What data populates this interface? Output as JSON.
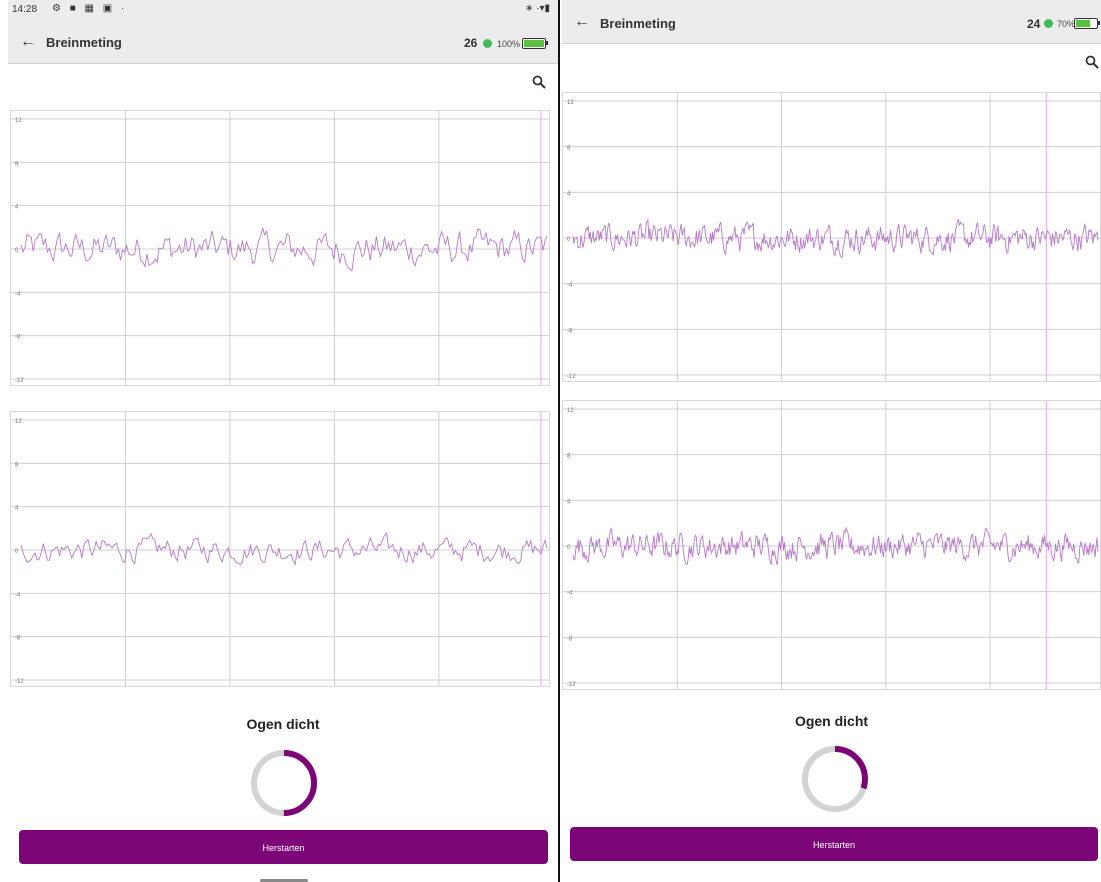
{
  "colors": {
    "accent": "#7b0577",
    "signal": "#b57ac8",
    "marker": "#e6a6e9",
    "grid": "#cfcfcf",
    "status_dot": "#3dbb57",
    "ring_track": "#d3d3d3"
  },
  "left": {
    "status_bar": {
      "time": "14:28"
    },
    "app_bar": {
      "title": "Breinmeting",
      "count": "26",
      "battery_text": "100%",
      "battery_level": 1.0
    },
    "search_icon": "search-icon",
    "label": "Ogen dicht",
    "progress": 0.5,
    "button_label": "Herstarten"
  },
  "right": {
    "app_bar": {
      "title": "Breinmeting",
      "count": "24",
      "battery_text": "70%",
      "battery_level": 0.7
    },
    "search_icon": "search-icon",
    "label": "Ogen dicht",
    "progress": 0.3,
    "button_label": "Herstarten"
  },
  "chart_data": [
    {
      "type": "line",
      "panel": "left",
      "position": "top",
      "ylim": [
        -12,
        12
      ],
      "yticks": [
        "12",
        "8",
        "4",
        "0",
        "-4",
        "-8",
        "-12"
      ],
      "series": [
        {
          "values_summary": "noisy EEG trace around 0, amplitude about 1.5"
        }
      ]
    },
    {
      "type": "line",
      "panel": "left",
      "position": "bottom",
      "ylim": [
        -12,
        12
      ],
      "yticks": [
        "12",
        "8",
        "4",
        "0",
        "-4",
        "-8",
        "-12"
      ],
      "series": [
        {
          "values_summary": "noisy EEG trace around 0, amplitude about 1"
        }
      ]
    },
    {
      "type": "line",
      "panel": "right",
      "position": "top",
      "ylim": [
        -12,
        12
      ],
      "yticks": [
        "12",
        "8",
        "4",
        "0",
        "-4",
        "-8",
        "-12"
      ],
      "series": [
        {
          "values_summary": "dense noisy EEG trace around 0, amplitude about 1"
        }
      ]
    },
    {
      "type": "line",
      "panel": "right",
      "position": "bottom",
      "ylim": [
        -12,
        12
      ],
      "yticks": [
        "12",
        "8",
        "4",
        "0",
        "-4",
        "-8",
        "-12"
      ],
      "series": [
        {
          "values_summary": "dense noisy EEG trace around 0, amplitude about 1"
        }
      ]
    }
  ]
}
